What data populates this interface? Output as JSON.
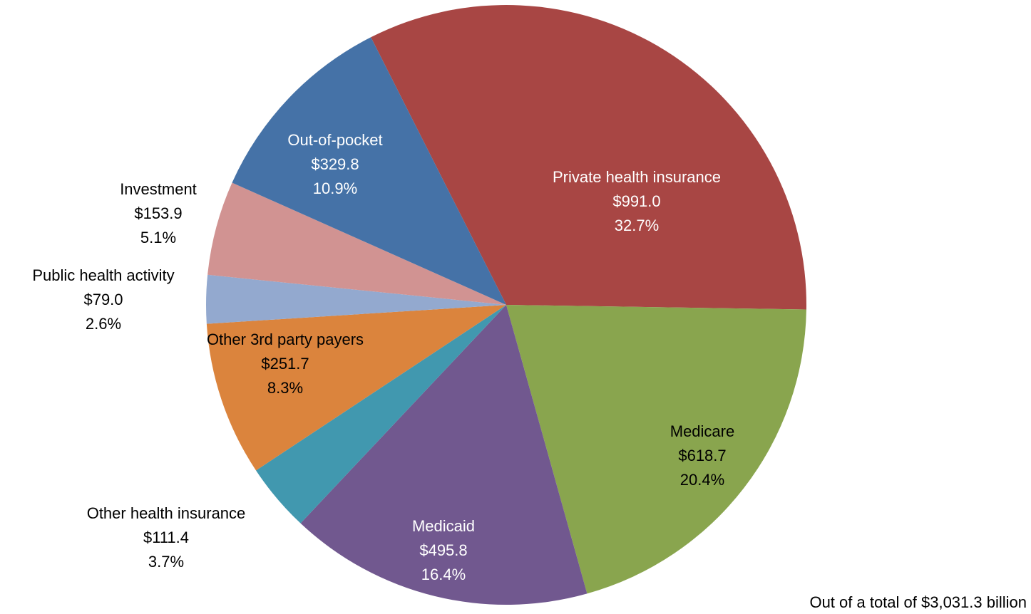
{
  "chart_data": {
    "type": "pie",
    "categories": [
      "Private health insurance",
      "Medicare",
      "Medicaid",
      "Other health insurance",
      "Other 3rd party payers",
      "Public health activity",
      "Investment",
      "Out-of-pocket"
    ],
    "values": [
      991.0,
      618.7,
      495.8,
      111.4,
      251.7,
      79.0,
      153.9,
      329.8
    ],
    "value_labels": [
      "$991.0",
      "$618.7",
      "$495.8",
      "$111.4",
      "$251.7",
      "$79.0",
      "$153.9",
      "$329.8"
    ],
    "percent_labels": [
      "32.7%",
      "20.4%",
      "16.4%",
      "3.7%",
      "8.3%",
      "2.6%",
      "5.1%",
      "10.9%"
    ],
    "colors": [
      "#A84644",
      "#89A54E",
      "#71588F",
      "#4198AF",
      "#DB843D",
      "#93A9CF",
      "#D19392",
      "#4572A7"
    ],
    "note": "Out of a total of $3,031.3 billion"
  }
}
